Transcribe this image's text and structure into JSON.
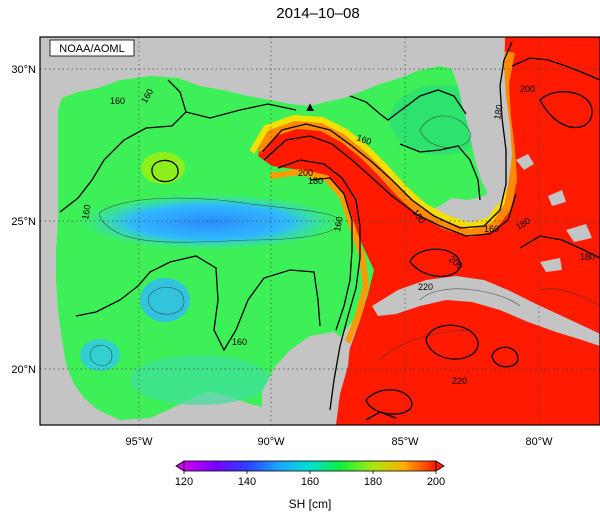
{
  "map": {
    "title": "2014–10–08",
    "credit": "NOAA/AOML",
    "lat_labels": [
      "30°N",
      "25°N",
      "20°N"
    ],
    "lon_labels": [
      "95°W",
      "90°W",
      "85°W",
      "80°W"
    ],
    "colorbar": {
      "ticks": [
        "120",
        "140",
        "160",
        "180",
        "200"
      ],
      "label": "SH [cm]",
      "range": [
        120,
        200
      ]
    },
    "contour_labels": [
      "160",
      "160",
      "160",
      "160",
      "180",
      "200",
      "160",
      "180",
      "200",
      "220",
      "180",
      "180",
      "220",
      "160",
      "160",
      "200",
      "180"
    ],
    "marker": "▲"
  }
}
